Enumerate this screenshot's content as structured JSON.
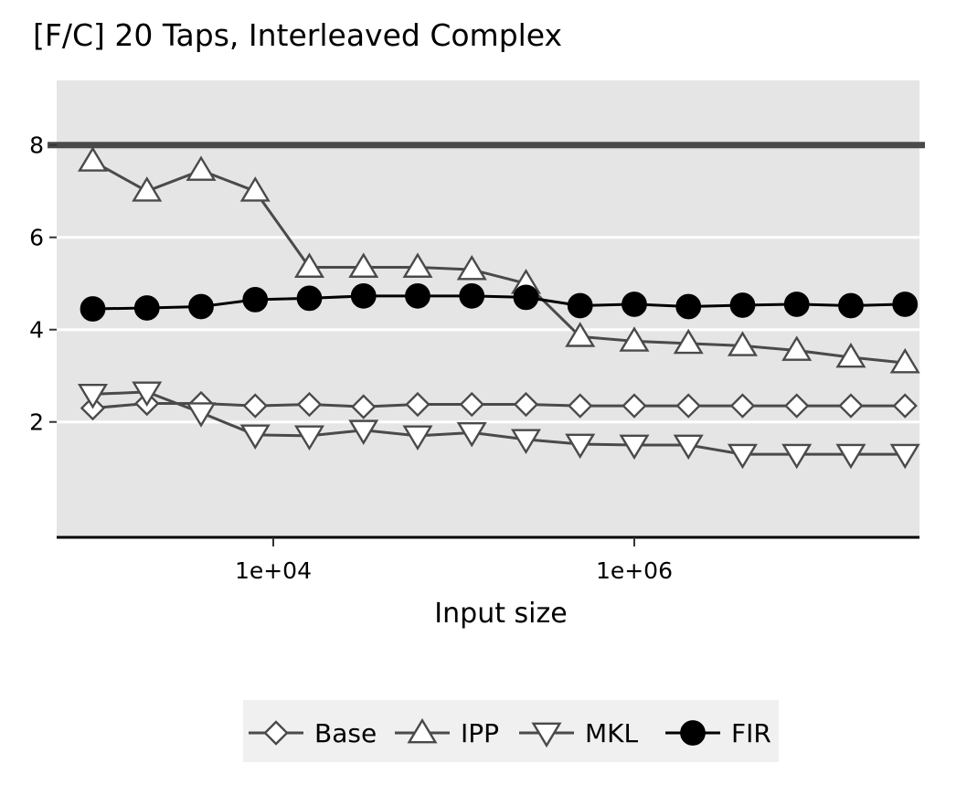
{
  "chart_data": {
    "type": "line",
    "title": "[F/C] 20 Taps, Interleaved Complex",
    "xlabel": "Input size",
    "ylabel": "",
    "x_scale": "log10",
    "xlim_log10": [
      2.8,
      7.58
    ],
    "ylim": [
      -0.5,
      9.4
    ],
    "x_ticks": [
      {
        "value_log10": 4,
        "label": "1e+04"
      },
      {
        "value_log10": 6,
        "label": "1e+06"
      }
    ],
    "y_ticks": [
      {
        "value": 2,
        "label": "2"
      },
      {
        "value": 4,
        "label": "4"
      },
      {
        "value": 6,
        "label": "6"
      },
      {
        "value": 8,
        "label": "8"
      }
    ],
    "reference_line": {
      "y": 8,
      "color": "#4a4a4a"
    },
    "grid": true,
    "panel_background": "#e5e5e5",
    "legend_position": "bottom",
    "x_log10": [
      3.0,
      3.3,
      3.6,
      3.9,
      4.2,
      4.5,
      4.8,
      5.1,
      5.4,
      5.7,
      6.0,
      6.3,
      6.6,
      6.9,
      7.2,
      7.5
    ],
    "series": [
      {
        "name": "Base",
        "marker": "diamond",
        "color": "#4a4a4a",
        "values": [
          2.3,
          2.4,
          2.4,
          2.35,
          2.38,
          2.33,
          2.38,
          2.38,
          2.38,
          2.35,
          2.35,
          2.35,
          2.35,
          2.35,
          2.35,
          2.35
        ]
      },
      {
        "name": "IPP",
        "marker": "triangle-up",
        "color": "#4a4a4a",
        "values": [
          7.65,
          7.0,
          7.45,
          7.0,
          5.35,
          5.35,
          5.35,
          5.3,
          5.0,
          3.85,
          3.75,
          3.7,
          3.65,
          3.55,
          3.4,
          3.28
        ]
      },
      {
        "name": "MKL",
        "marker": "triangle-down",
        "color": "#4a4a4a",
        "values": [
          2.6,
          2.65,
          2.2,
          1.72,
          1.7,
          1.82,
          1.7,
          1.77,
          1.62,
          1.52,
          1.5,
          1.5,
          1.3,
          1.3,
          1.3,
          1.3
        ]
      },
      {
        "name": "FIR",
        "marker": "circle",
        "color": "#000000",
        "values": [
          4.45,
          4.47,
          4.5,
          4.65,
          4.68,
          4.73,
          4.73,
          4.73,
          4.7,
          4.52,
          4.55,
          4.5,
          4.53,
          4.55,
          4.52,
          4.55
        ]
      }
    ]
  }
}
